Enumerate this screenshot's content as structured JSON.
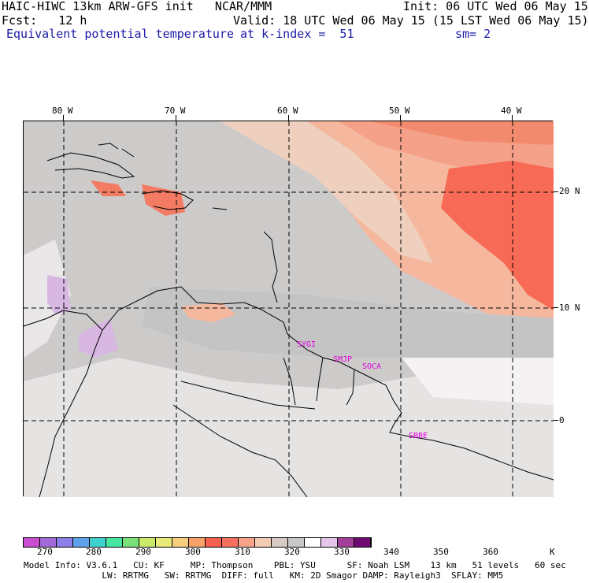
{
  "header": {
    "left_line1": "HAIC-HIWC 13km ARW-GFS init   NCAR/MMM",
    "left_line2": "Fcst:   12 h",
    "right_line1": "Init: 06 UTC Wed 06 May 15",
    "right_line2": "Valid: 18 UTC Wed 06 May 15 (15 LST Wed 06 May 15)",
    "field_name": "Equivalent potential temperature",
    "level": "at k-index =  51",
    "smoothing": "sm= 2"
  },
  "map": {
    "lon_labels": [
      "80 W",
      "70 W",
      "60 W",
      "50 W",
      "40 W"
    ],
    "lat_labels": [
      "20 N",
      "10 N",
      "0"
    ],
    "stations": [
      {
        "id": "SYGI",
        "label": "SYGI"
      },
      {
        "id": "SMJP",
        "label": "SMJP"
      },
      {
        "id": "SOCA",
        "label": "SOCA"
      },
      {
        "id": "SBBE",
        "label": "SBBE"
      }
    ]
  },
  "colorbar": {
    "labels": [
      "270",
      "280",
      "290",
      "300",
      "310",
      "320",
      "330",
      "340",
      "350",
      "360"
    ],
    "unit": "K",
    "colors": [
      "#c94ecf",
      "#a26ad9",
      "#8d7fe8",
      "#5fa0ea",
      "#3ed2cf",
      "#44e6a0",
      "#7ae07a",
      "#c9ea6a",
      "#eaea7a",
      "#f7cf7f",
      "#f7a268",
      "#f75f4f",
      "#fa7060",
      "#f7a38a",
      "#f3ccb3",
      "#d7cbc3",
      "#c8c8c8",
      "#ffffff",
      "#e3c6ea",
      "#a33f9a",
      "#6f0a72"
    ]
  },
  "model_info": {
    "line1": "Model Info: V3.6.1   CU: KF     MP: Thompson    PBL: YSU      SF: Noah LSM    13 km   51 levels   60 sec",
    "line2": "               LW: RRTMG   SW: RRTMG  DIFF: full   KM: 2D Smagor DAMP: Rayleigh3  SFLAY: MM5"
  }
}
